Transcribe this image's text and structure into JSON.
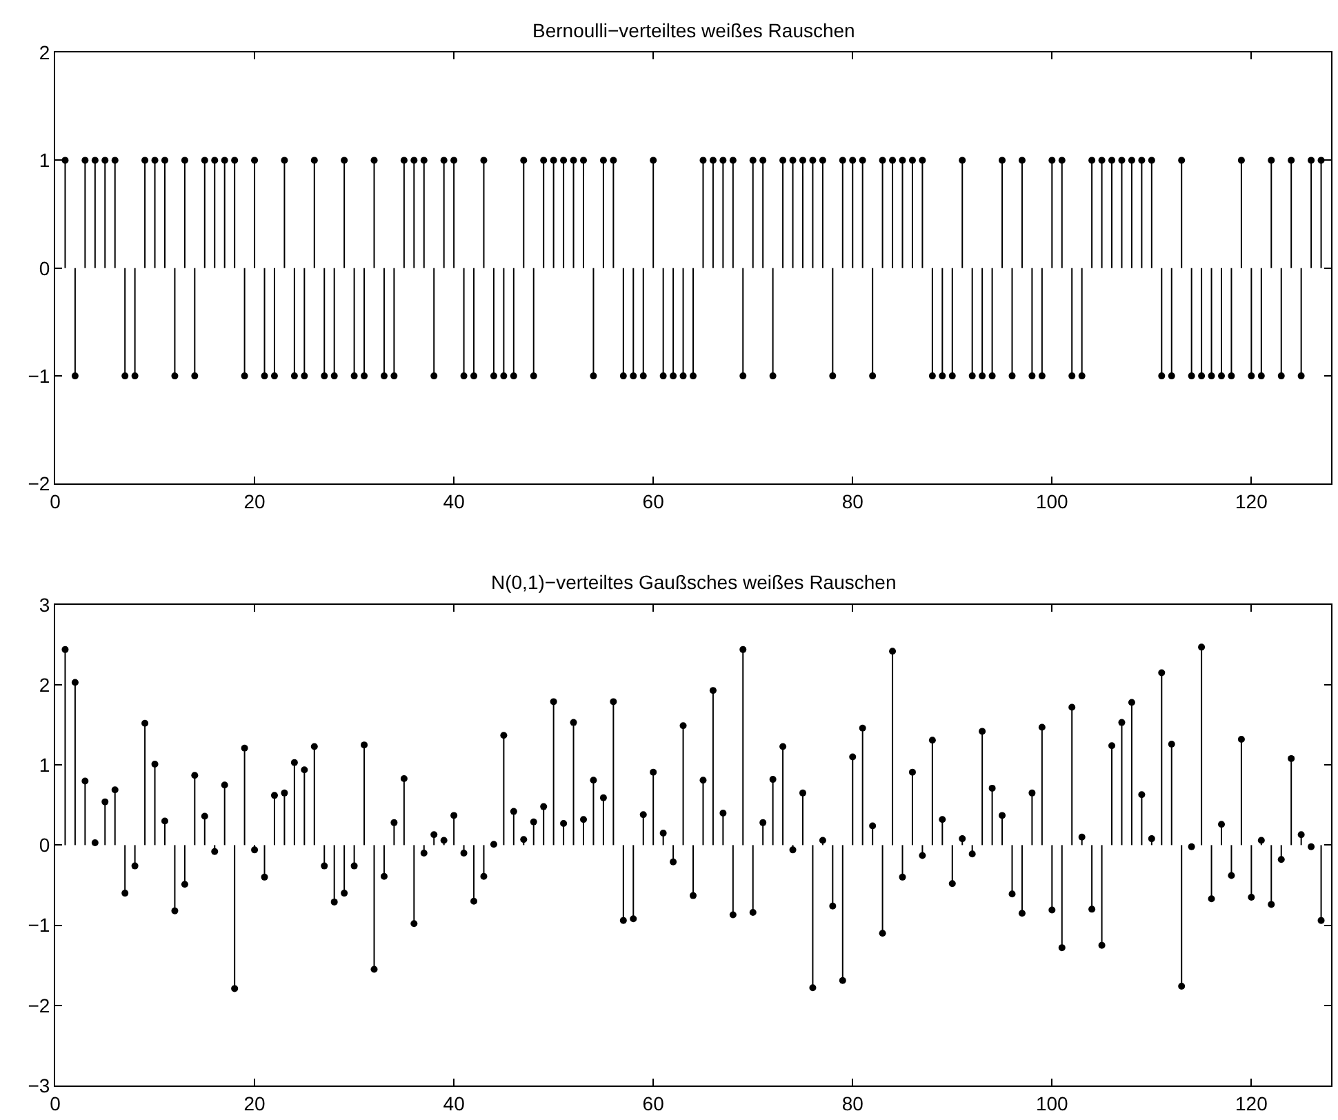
{
  "chart_data": [
    {
      "type": "lollipop",
      "title": "Bernoulli−verteiltes weißes Rauschen",
      "color": "#000000",
      "marker": "circle",
      "x": [
        1,
        2,
        3,
        4,
        5,
        6,
        7,
        8,
        9,
        10,
        11,
        12,
        13,
        14,
        15,
        16,
        17,
        18,
        19,
        20,
        21,
        22,
        23,
        24,
        25,
        26,
        27,
        28,
        29,
        30,
        31,
        32,
        33,
        34,
        35,
        36,
        37,
        38,
        39,
        40,
        41,
        42,
        43,
        44,
        45,
        46,
        47,
        48,
        49,
        50,
        51,
        52,
        53,
        54,
        55,
        56,
        57,
        58,
        59,
        60,
        61,
        62,
        63,
        64,
        65,
        66,
        67,
        68,
        69,
        70,
        71,
        72,
        73,
        74,
        75,
        76,
        77,
        78,
        79,
        80,
        81,
        82,
        83,
        84,
        85,
        86,
        87,
        88,
        89,
        90,
        91,
        92,
        93,
        94,
        95,
        96,
        97,
        98,
        99,
        100,
        101,
        102,
        103,
        104,
        105,
        106,
        107,
        108,
        109,
        110,
        111,
        112,
        113,
        114,
        115,
        116,
        117,
        118,
        119,
        120,
        121,
        122,
        123,
        124,
        125,
        126,
        127
      ],
      "values": [
        1,
        -1,
        1,
        1,
        1,
        1,
        -1,
        -1,
        1,
        1,
        1,
        -1,
        1,
        -1,
        1,
        1,
        1,
        1,
        -1,
        1,
        -1,
        -1,
        1,
        -1,
        -1,
        1,
        -1,
        -1,
        1,
        -1,
        -1,
        1,
        -1,
        -1,
        1,
        1,
        1,
        -1,
        1,
        1,
        -1,
        -1,
        1,
        -1,
        -1,
        -1,
        1,
        -1,
        1,
        1,
        1,
        1,
        1,
        -1,
        1,
        1,
        -1,
        -1,
        -1,
        1,
        -1,
        -1,
        -1,
        -1,
        1,
        1,
        1,
        1,
        -1,
        1,
        1,
        -1,
        1,
        1,
        1,
        1,
        1,
        -1,
        1,
        1,
        1,
        -1,
        1,
        1,
        1,
        1,
        1,
        -1,
        -1,
        -1,
        1,
        -1,
        -1,
        -1,
        1,
        -1,
        1,
        -1,
        -1,
        1,
        1,
        -1,
        -1,
        1,
        1,
        1,
        1,
        1,
        1,
        1,
        -1,
        -1,
        1,
        -1,
        -1,
        -1,
        -1,
        -1,
        1,
        -1,
        -1,
        1,
        -1,
        1,
        -1,
        1,
        1
      ],
      "xlim": [
        0,
        128
      ],
      "xticks": [
        0,
        20,
        40,
        60,
        80,
        100,
        120
      ],
      "ylim": [
        -2,
        2
      ],
      "yticks": [
        -2,
        -1,
        0,
        1,
        2
      ]
    },
    {
      "type": "lollipop",
      "title": "N(0,1)−verteiltes Gaußsches weißes Rauschen",
      "color": "#000000",
      "marker": "circle",
      "x": [
        1,
        2,
        3,
        4,
        5,
        6,
        7,
        8,
        9,
        10,
        11,
        12,
        13,
        14,
        15,
        16,
        17,
        18,
        19,
        20,
        21,
        22,
        23,
        24,
        25,
        26,
        27,
        28,
        29,
        30,
        31,
        32,
        33,
        34,
        35,
        36,
        37,
        38,
        39,
        40,
        41,
        42,
        43,
        44,
        45,
        46,
        47,
        48,
        49,
        50,
        51,
        52,
        53,
        54,
        55,
        56,
        57,
        58,
        59,
        60,
        61,
        62,
        63,
        64,
        65,
        66,
        67,
        68,
        69,
        70,
        71,
        72,
        73,
        74,
        75,
        76,
        77,
        78,
        79,
        80,
        81,
        82,
        83,
        84,
        85,
        86,
        87,
        88,
        89,
        90,
        91,
        92,
        93,
        94,
        95,
        96,
        97,
        98,
        99,
        100,
        101,
        102,
        103,
        104,
        105,
        106,
        107,
        108,
        109,
        110,
        111,
        112,
        113,
        114,
        115,
        116,
        117,
        118,
        119,
        120,
        121,
        122,
        123,
        124,
        125,
        126,
        127
      ],
      "values": [
        2.44,
        2.03,
        0.8,
        0.03,
        0.54,
        0.69,
        -0.6,
        -0.26,
        1.52,
        1.01,
        0.3,
        -0.82,
        -0.49,
        0.87,
        0.36,
        -0.08,
        0.75,
        -1.79,
        1.21,
        -0.06,
        -0.4,
        0.62,
        0.65,
        1.03,
        0.94,
        1.23,
        -0.26,
        -0.71,
        -0.6,
        -0.26,
        1.25,
        -1.55,
        -0.39,
        0.28,
        0.83,
        -0.98,
        -0.1,
        0.13,
        0.06,
        0.37,
        -0.1,
        -0.7,
        -0.39,
        0.01,
        1.37,
        0.42,
        0.07,
        0.29,
        0.48,
        1.79,
        0.27,
        1.53,
        0.32,
        0.81,
        0.59,
        1.79,
        -0.94,
        -0.92,
        0.38,
        0.91,
        0.15,
        -0.21,
        1.49,
        -0.63,
        0.81,
        1.93,
        0.4,
        -0.87,
        2.44,
        -0.84,
        0.28,
        0.82,
        1.23,
        -0.06,
        0.65,
        -1.78,
        0.06,
        -0.76,
        -1.69,
        1.1,
        1.46,
        0.24,
        -1.1,
        2.42,
        -0.4,
        0.91,
        -0.13,
        1.31,
        0.32,
        -0.48,
        0.08,
        -0.11,
        1.42,
        0.71,
        0.37,
        -0.61,
        -0.85,
        0.65,
        1.47,
        -0.81,
        -1.28,
        1.72,
        0.1,
        -0.8,
        -1.25,
        1.24,
        1.53,
        1.78,
        0.63,
        0.08,
        2.15,
        1.26,
        -1.76,
        -0.02,
        2.47,
        -0.67,
        0.26,
        -0.38,
        1.32,
        -0.65,
        0.06,
        -0.74,
        -0.18,
        1.08,
        0.13,
        -0.02,
        -0.94
      ],
      "xlim": [
        0,
        128
      ],
      "xticks": [
        0,
        20,
        40,
        60,
        80,
        100,
        120
      ],
      "ylim": [
        -3,
        3
      ],
      "yticks": [
        -3,
        -2,
        -1,
        0,
        1,
        2,
        3
      ]
    }
  ]
}
